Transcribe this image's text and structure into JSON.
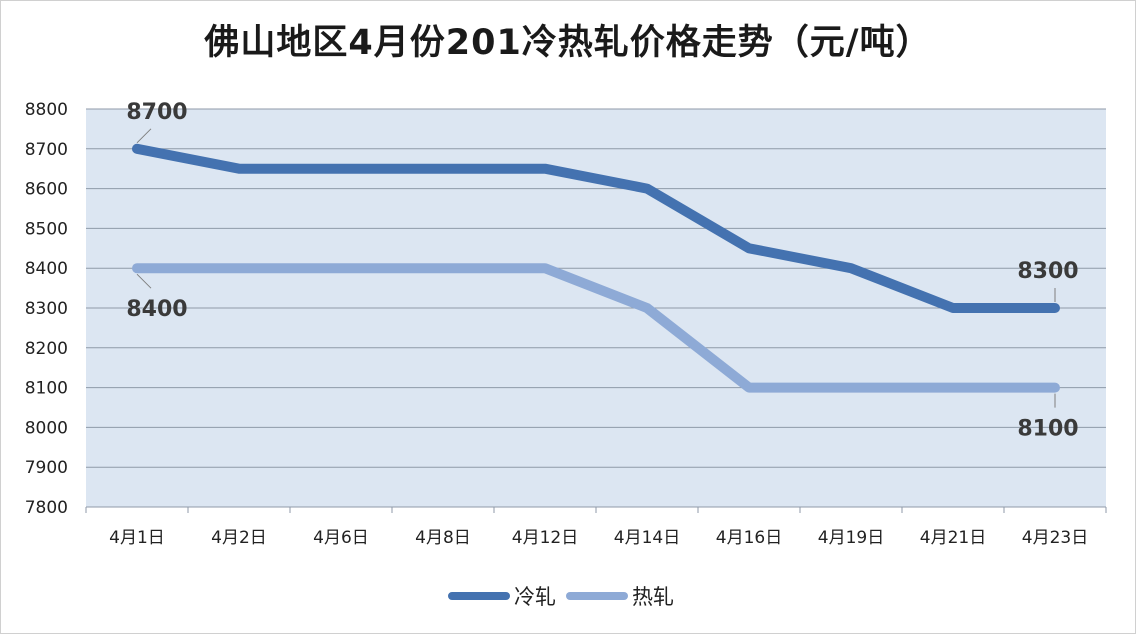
{
  "chart_data": {
    "type": "line",
    "title": "佛山地区4月份201冷热轧价格走势（元/吨）",
    "categories": [
      "4月1日",
      "4月2日",
      "4月6日",
      "4月8日",
      "4月12日",
      "4月14日",
      "4月16日",
      "4月19日",
      "4月21日",
      "4月23日"
    ],
    "series": [
      {
        "name": "冷轧",
        "color": "#4472b0",
        "values": [
          8700,
          8650,
          8650,
          8650,
          8650,
          8600,
          8450,
          8400,
          8300,
          8300
        ]
      },
      {
        "name": "热轧",
        "color": "#8eaad6",
        "values": [
          8400,
          8400,
          8400,
          8400,
          8400,
          8300,
          8100,
          8100,
          8100,
          8100
        ]
      }
    ],
    "yticks": [
      7800,
      7900,
      8000,
      8100,
      8200,
      8300,
      8400,
      8500,
      8600,
      8700,
      8800
    ],
    "ylim": [
      7800,
      8800
    ],
    "grid": true,
    "legend_position": "bottom",
    "data_labels": [
      {
        "text": "8700",
        "series": 0,
        "index": 0,
        "place": "above"
      },
      {
        "text": "8300",
        "series": 0,
        "index": 9,
        "place": "above"
      },
      {
        "text": "8400",
        "series": 1,
        "index": 0,
        "place": "below"
      },
      {
        "text": "8100",
        "series": 1,
        "index": 9,
        "place": "below"
      }
    ],
    "plot_background": "#dce6f2",
    "grid_color": "#8f9aa8"
  }
}
